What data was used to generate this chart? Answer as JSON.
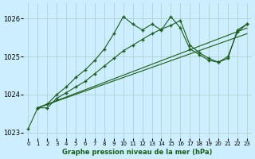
{
  "title": "Graphe pression niveau de la mer (hPa)",
  "bg_color": "#cceeff",
  "grid_color": "#aacccc",
  "line_color": "#1a5c1a",
  "xlim": [
    -0.5,
    23.5
  ],
  "ylim": [
    1022.85,
    1026.4
  ],
  "yticks": [
    1023,
    1024,
    1025,
    1026
  ],
  "xticks": [
    0,
    1,
    2,
    3,
    4,
    5,
    6,
    7,
    8,
    9,
    10,
    11,
    12,
    13,
    14,
    15,
    16,
    17,
    18,
    19,
    20,
    21,
    22,
    23
  ],
  "series": [
    {
      "x": [
        0,
        1,
        2,
        3,
        4,
        5,
        6,
        7,
        8,
        9,
        10,
        11,
        12,
        13,
        14,
        15,
        16,
        17,
        18,
        19,
        20,
        21,
        22,
        23
      ],
      "y": [
        1023.1,
        1023.65,
        1023.75,
        1024.0,
        1024.2,
        1024.45,
        1024.65,
        1024.9,
        1025.2,
        1025.6,
        1026.05,
        1025.85,
        1025.7,
        1025.85,
        1025.7,
        1026.05,
        1025.75,
        1025.2,
        1025.05,
        1024.9,
        1024.85,
        1025.0,
        1025.65,
        1025.85
      ],
      "marker": true
    },
    {
      "x": [
        1,
        2,
        3,
        4,
        5,
        6,
        7,
        8,
        9,
        10,
        11,
        12,
        13,
        14,
        15,
        16,
        17,
        18,
        19,
        20,
        21,
        22,
        23
      ],
      "y": [
        1023.65,
        1023.65,
        1023.9,
        1024.05,
        1024.2,
        1024.35,
        1024.55,
        1024.75,
        1024.95,
        1025.15,
        1025.3,
        1025.45,
        1025.6,
        1025.72,
        1025.82,
        1025.95,
        1025.3,
        1025.1,
        1024.95,
        1024.85,
        1024.95,
        1025.7,
        1025.85
      ],
      "marker": true
    },
    {
      "x": [
        1,
        23
      ],
      "y": [
        1023.65,
        1025.75
      ],
      "marker": false
    },
    {
      "x": [
        1,
        23
      ],
      "y": [
        1023.65,
        1025.6
      ],
      "marker": false
    }
  ]
}
